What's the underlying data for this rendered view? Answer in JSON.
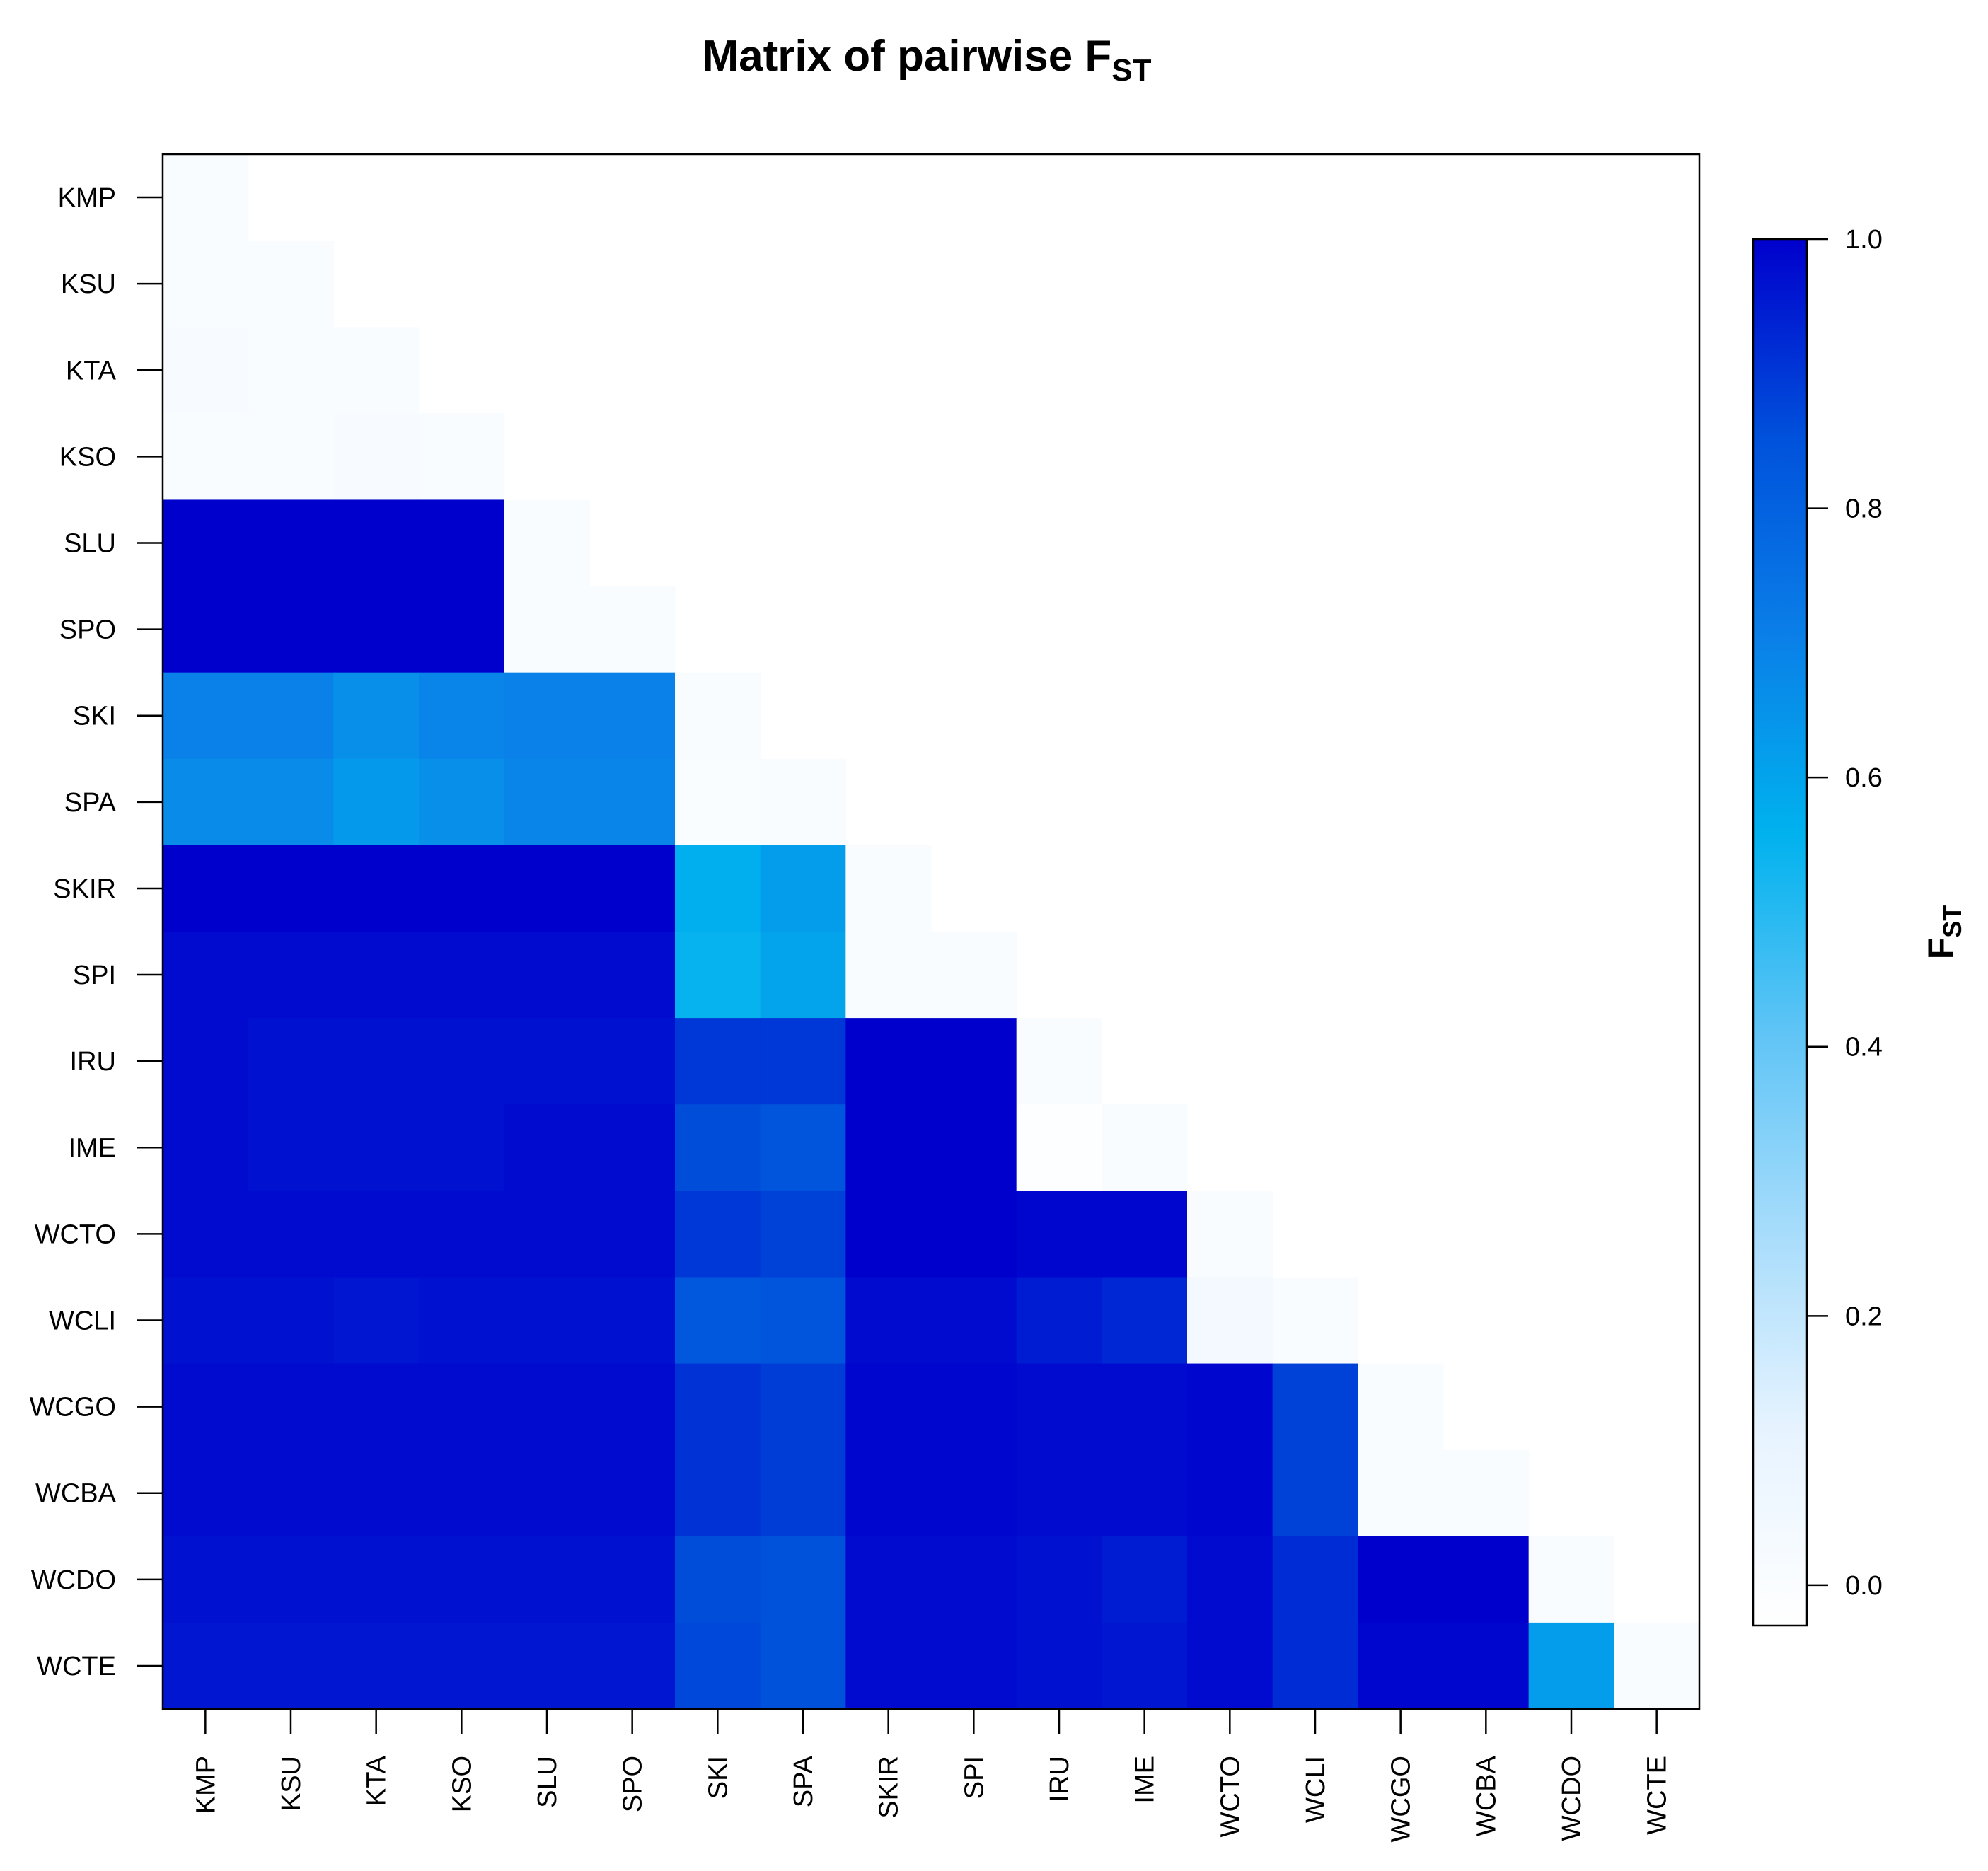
{
  "chart_data": {
    "type": "heatmap",
    "title": "Matrix of pairwise F",
    "title_subscript": "ST",
    "populations": [
      "KMP",
      "KSU",
      "KTA",
      "KSO",
      "SLU",
      "SPO",
      "SKI",
      "SPA",
      "SKIR",
      "SPI",
      "IRU",
      "IME",
      "WCTO",
      "WCLI",
      "WCGO",
      "WCBA",
      "WCDO",
      "WCTE"
    ],
    "lower_triangle_only": true,
    "diagonal_included": true,
    "values": [
      [
        0.01
      ],
      [
        0.01,
        0.01
      ],
      [
        0.02,
        0.01,
        0.01
      ],
      [
        0.01,
        0.01,
        0.02,
        0.01
      ],
      [
        1.0,
        1.0,
        1.0,
        1.0,
        0.01
      ],
      [
        1.0,
        1.0,
        1.0,
        1.0,
        0.01,
        0.01
      ],
      [
        0.7,
        0.7,
        0.66,
        0.69,
        0.7,
        0.7,
        0.01
      ],
      [
        0.67,
        0.67,
        0.63,
        0.66,
        0.69,
        0.69,
        0.0,
        0.01
      ],
      [
        1.0,
        1.0,
        1.0,
        1.0,
        1.0,
        1.0,
        0.57,
        0.62,
        0.01
      ],
      [
        0.98,
        0.98,
        0.98,
        0.98,
        0.98,
        0.98,
        0.55,
        0.6,
        0.01,
        0.01
      ],
      [
        0.98,
        0.97,
        0.97,
        0.97,
        0.97,
        0.97,
        0.9,
        0.9,
        1.0,
        1.0,
        0.01
      ],
      [
        0.98,
        0.97,
        0.97,
        0.97,
        0.98,
        0.98,
        0.86,
        0.84,
        1.0,
        1.0,
        -0.02,
        0.01
      ],
      [
        0.98,
        0.98,
        0.98,
        0.98,
        0.98,
        0.98,
        0.9,
        0.88,
        1.0,
        1.0,
        0.99,
        0.99,
        0.01
      ],
      [
        0.97,
        0.97,
        0.96,
        0.97,
        0.97,
        0.97,
        0.83,
        0.84,
        0.98,
        0.98,
        0.95,
        0.93,
        0.04,
        0.01
      ],
      [
        0.98,
        0.98,
        0.98,
        0.98,
        0.98,
        0.98,
        0.91,
        0.89,
        0.99,
        0.99,
        0.98,
        0.98,
        0.99,
        0.88,
        0.01
      ],
      [
        0.98,
        0.98,
        0.98,
        0.98,
        0.98,
        0.98,
        0.91,
        0.89,
        0.99,
        0.99,
        0.98,
        0.98,
        0.99,
        0.88,
        0.01,
        0.01
      ],
      [
        0.97,
        0.97,
        0.97,
        0.97,
        0.97,
        0.97,
        0.86,
        0.85,
        0.98,
        0.98,
        0.97,
        0.95,
        0.98,
        0.92,
        1.0,
        1.0,
        0.01
      ],
      [
        0.96,
        0.96,
        0.96,
        0.96,
        0.96,
        0.96,
        0.87,
        0.85,
        0.98,
        0.98,
        0.97,
        0.96,
        0.98,
        0.92,
        0.99,
        0.99,
        0.62,
        0.01
      ]
    ],
    "colorbar": {
      "label": "F",
      "label_subscript": "ST",
      "range": [
        -0.03,
        1.0
      ],
      "ticks": [
        "0.0",
        "0.2",
        "0.4",
        "0.6",
        "0.8",
        "1.0"
      ],
      "tick_values": [
        0.0,
        0.2,
        0.4,
        0.6,
        0.8,
        1.0
      ],
      "colors": [
        "#ffffff",
        "#e6f3ff",
        "#a6dcfb",
        "#5fc4f6",
        "#00b2ee",
        "#0a7fe8",
        "#0051db",
        "#0000cd"
      ],
      "position": "right"
    },
    "grid": false
  }
}
